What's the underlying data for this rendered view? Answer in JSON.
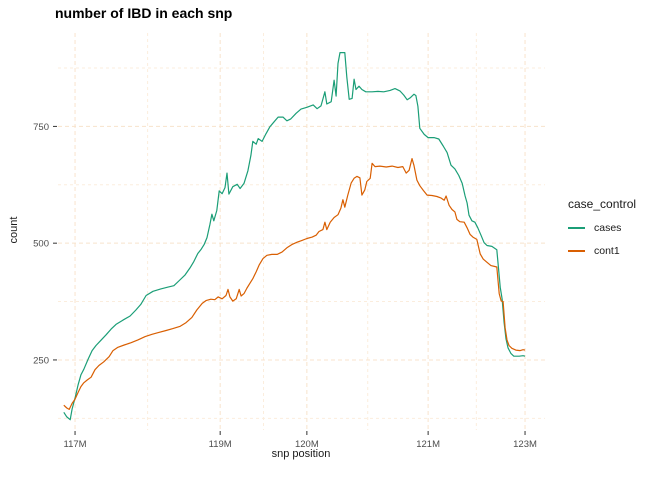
{
  "title": "number of IBD in each snp",
  "colors": {
    "cases": "#1B9E77",
    "cont1": "#D95F02",
    "grid_major": "#F8E3CC",
    "grid_minor": "#FBEDDD",
    "tick_mark": "#333333",
    "tick_label": "#4D4D4D",
    "text": "#1A1A1A"
  },
  "legend": {
    "title": "case_control",
    "items": [
      {
        "label": "cases",
        "color": "#1B9E77"
      },
      {
        "label": "cont1",
        "color": "#D95F02"
      }
    ]
  },
  "chart_data": {
    "type": "line",
    "title": "number of IBD in each snp",
    "xlabel": "snp position",
    "ylabel": "count",
    "ylim": [
      100,
      950
    ],
    "grid": "dashed",
    "legend_position": "right",
    "x_axis_note": "x is fraction across panel; tick spacing is nonlinear (snp-index scale)",
    "x_ticks": [
      {
        "label": "117M",
        "pos": 0.035
      },
      {
        "label": "119M",
        "pos": 0.333
      },
      {
        "label": "120M",
        "pos": 0.511
      },
      {
        "label": "121M",
        "pos": 0.76
      },
      {
        "label": "123M",
        "pos": 0.959
      }
    ],
    "x_minor_pos": [
      0.184,
      0.422,
      0.636,
      0.859
    ],
    "y_ticks": [
      {
        "label": "250",
        "value": 250
      },
      {
        "label": "500",
        "value": 500
      },
      {
        "label": "750",
        "value": 750
      }
    ],
    "y_minor_values": [
      125,
      375,
      625,
      875
    ],
    "series": [
      {
        "name": "cases",
        "color": "#1B9E77",
        "points": [
          [
            0.012,
            138
          ],
          [
            0.018,
            128
          ],
          [
            0.025,
            122
          ],
          [
            0.029,
            145
          ],
          [
            0.035,
            168
          ],
          [
            0.041,
            196
          ],
          [
            0.047,
            218
          ],
          [
            0.053,
            230
          ],
          [
            0.062,
            252
          ],
          [
            0.07,
            270
          ],
          [
            0.078,
            281
          ],
          [
            0.088,
            292
          ],
          [
            0.099,
            304
          ],
          [
            0.109,
            316
          ],
          [
            0.119,
            326
          ],
          [
            0.133,
            335
          ],
          [
            0.148,
            344
          ],
          [
            0.16,
            357
          ],
          [
            0.17,
            369
          ],
          [
            0.181,
            388
          ],
          [
            0.195,
            397
          ],
          [
            0.211,
            402
          ],
          [
            0.226,
            406
          ],
          [
            0.238,
            409
          ],
          [
            0.248,
            419
          ],
          [
            0.261,
            432
          ],
          [
            0.271,
            447
          ],
          [
            0.279,
            461
          ],
          [
            0.287,
            478
          ],
          [
            0.294,
            487
          ],
          [
            0.3,
            497
          ],
          [
            0.306,
            512
          ],
          [
            0.312,
            540
          ],
          [
            0.316,
            562
          ],
          [
            0.32,
            548
          ],
          [
            0.326,
            570
          ],
          [
            0.331,
            612
          ],
          [
            0.337,
            606
          ],
          [
            0.343,
            619
          ],
          [
            0.347,
            650
          ],
          [
            0.351,
            605
          ],
          [
            0.359,
            621
          ],
          [
            0.368,
            626
          ],
          [
            0.374,
            617
          ],
          [
            0.382,
            628
          ],
          [
            0.39,
            655
          ],
          [
            0.396,
            688
          ],
          [
            0.4,
            718
          ],
          [
            0.407,
            712
          ],
          [
            0.411,
            724
          ],
          [
            0.419,
            718
          ],
          [
            0.427,
            734
          ],
          [
            0.435,
            749
          ],
          [
            0.444,
            760
          ],
          [
            0.452,
            770
          ],
          [
            0.462,
            770
          ],
          [
            0.47,
            762
          ],
          [
            0.478,
            766
          ],
          [
            0.489,
            778
          ],
          [
            0.499,
            787
          ],
          [
            0.511,
            791
          ],
          [
            0.524,
            796
          ],
          [
            0.532,
            788
          ],
          [
            0.54,
            794
          ],
          [
            0.548,
            824
          ],
          [
            0.552,
            798
          ],
          [
            0.561,
            803
          ],
          [
            0.567,
            849
          ],
          [
            0.571,
            815
          ],
          [
            0.575,
            885
          ],
          [
            0.579,
            908
          ],
          [
            0.589,
            908
          ],
          [
            0.593,
            856
          ],
          [
            0.598,
            808
          ],
          [
            0.604,
            810
          ],
          [
            0.608,
            851
          ],
          [
            0.612,
            829
          ],
          [
            0.618,
            836
          ],
          [
            0.624,
            829
          ],
          [
            0.632,
            824
          ],
          [
            0.645,
            824
          ],
          [
            0.657,
            825
          ],
          [
            0.669,
            824
          ],
          [
            0.682,
            827
          ],
          [
            0.692,
            831
          ],
          [
            0.702,
            826
          ],
          [
            0.71,
            817
          ],
          [
            0.717,
            807
          ],
          [
            0.723,
            811
          ],
          [
            0.731,
            819
          ],
          [
            0.735,
            816
          ],
          [
            0.739,
            793
          ],
          [
            0.743,
            746
          ],
          [
            0.752,
            733
          ],
          [
            0.76,
            726
          ],
          [
            0.772,
            726
          ],
          [
            0.782,
            723
          ],
          [
            0.791,
            708
          ],
          [
            0.799,
            694
          ],
          [
            0.807,
            667
          ],
          [
            0.815,
            659
          ],
          [
            0.823,
            645
          ],
          [
            0.83,
            628
          ],
          [
            0.836,
            601
          ],
          [
            0.84,
            586
          ],
          [
            0.844,
            560
          ],
          [
            0.85,
            548
          ],
          [
            0.856,
            545
          ],
          [
            0.862,
            533
          ],
          [
            0.869,
            516
          ],
          [
            0.875,
            501
          ],
          [
            0.881,
            495
          ],
          [
            0.891,
            493
          ],
          [
            0.901,
            486
          ],
          [
            0.906,
            430
          ],
          [
            0.908,
            406
          ],
          [
            0.912,
            381
          ],
          [
            0.916,
            330
          ],
          [
            0.92,
            295
          ],
          [
            0.924,
            276
          ],
          [
            0.93,
            264
          ],
          [
            0.936,
            258
          ],
          [
            0.947,
            258
          ],
          [
            0.955,
            259
          ],
          [
            0.959,
            258
          ]
        ]
      },
      {
        "name": "cont1",
        "color": "#D95F02",
        "points": [
          [
            0.012,
            153
          ],
          [
            0.018,
            147
          ],
          [
            0.023,
            144
          ],
          [
            0.029,
            157
          ],
          [
            0.035,
            166
          ],
          [
            0.041,
            180
          ],
          [
            0.047,
            193
          ],
          [
            0.053,
            201
          ],
          [
            0.06,
            207
          ],
          [
            0.068,
            213
          ],
          [
            0.076,
            229
          ],
          [
            0.084,
            238
          ],
          [
            0.094,
            246
          ],
          [
            0.105,
            257
          ],
          [
            0.113,
            270
          ],
          [
            0.123,
            277
          ],
          [
            0.136,
            282
          ],
          [
            0.15,
            287
          ],
          [
            0.164,
            293
          ],
          [
            0.179,
            300
          ],
          [
            0.193,
            305
          ],
          [
            0.207,
            309
          ],
          [
            0.222,
            313
          ],
          [
            0.236,
            317
          ],
          [
            0.251,
            322
          ],
          [
            0.263,
            330
          ],
          [
            0.275,
            341
          ],
          [
            0.285,
            357
          ],
          [
            0.296,
            371
          ],
          [
            0.304,
            377
          ],
          [
            0.314,
            380
          ],
          [
            0.322,
            379
          ],
          [
            0.329,
            385
          ],
          [
            0.337,
            381
          ],
          [
            0.345,
            388
          ],
          [
            0.349,
            401
          ],
          [
            0.353,
            385
          ],
          [
            0.359,
            376
          ],
          [
            0.366,
            381
          ],
          [
            0.372,
            401
          ],
          [
            0.376,
            387
          ],
          [
            0.382,
            392
          ],
          [
            0.388,
            404
          ],
          [
            0.394,
            414
          ],
          [
            0.4,
            424
          ],
          [
            0.407,
            439
          ],
          [
            0.413,
            453
          ],
          [
            0.421,
            467
          ],
          [
            0.429,
            474
          ],
          [
            0.439,
            476
          ],
          [
            0.45,
            476
          ],
          [
            0.46,
            481
          ],
          [
            0.47,
            490
          ],
          [
            0.48,
            497
          ],
          [
            0.491,
            502
          ],
          [
            0.501,
            506
          ],
          [
            0.511,
            510
          ],
          [
            0.522,
            513
          ],
          [
            0.53,
            517
          ],
          [
            0.536,
            525
          ],
          [
            0.544,
            529
          ],
          [
            0.548,
            545
          ],
          [
            0.552,
            529
          ],
          [
            0.559,
            545
          ],
          [
            0.567,
            555
          ],
          [
            0.575,
            561
          ],
          [
            0.581,
            575
          ],
          [
            0.585,
            593
          ],
          [
            0.589,
            577
          ],
          [
            0.595,
            603
          ],
          [
            0.602,
            629
          ],
          [
            0.608,
            639
          ],
          [
            0.614,
            643
          ],
          [
            0.62,
            640
          ],
          [
            0.624,
            603
          ],
          [
            0.63,
            614
          ],
          [
            0.634,
            632
          ],
          [
            0.641,
            639
          ],
          [
            0.645,
            671
          ],
          [
            0.651,
            664
          ],
          [
            0.661,
            665
          ],
          [
            0.674,
            663
          ],
          [
            0.686,
            665
          ],
          [
            0.698,
            662
          ],
          [
            0.708,
            664
          ],
          [
            0.715,
            650
          ],
          [
            0.721,
            656
          ],
          [
            0.727,
            681
          ],
          [
            0.731,
            666
          ],
          [
            0.737,
            635
          ],
          [
            0.743,
            623
          ],
          [
            0.75,
            613
          ],
          [
            0.758,
            603
          ],
          [
            0.768,
            602
          ],
          [
            0.778,
            600
          ],
          [
            0.786,
            597
          ],
          [
            0.793,
            592
          ],
          [
            0.797,
            601
          ],
          [
            0.803,
            581
          ],
          [
            0.809,
            572
          ],
          [
            0.815,
            567
          ],
          [
            0.819,
            551
          ],
          [
            0.825,
            546
          ],
          [
            0.834,
            545
          ],
          [
            0.84,
            533
          ],
          [
            0.846,
            519
          ],
          [
            0.852,
            513
          ],
          [
            0.86,
            508
          ],
          [
            0.867,
            477
          ],
          [
            0.873,
            466
          ],
          [
            0.881,
            459
          ],
          [
            0.889,
            452
          ],
          [
            0.897,
            450
          ],
          [
            0.901,
            449
          ],
          [
            0.906,
            392
          ],
          [
            0.91,
            376
          ],
          [
            0.914,
            375
          ],
          [
            0.918,
            319
          ],
          [
            0.922,
            293
          ],
          [
            0.926,
            281
          ],
          [
            0.932,
            275
          ],
          [
            0.94,
            271
          ],
          [
            0.949,
            270
          ],
          [
            0.955,
            272
          ],
          [
            0.959,
            271
          ]
        ]
      }
    ]
  }
}
